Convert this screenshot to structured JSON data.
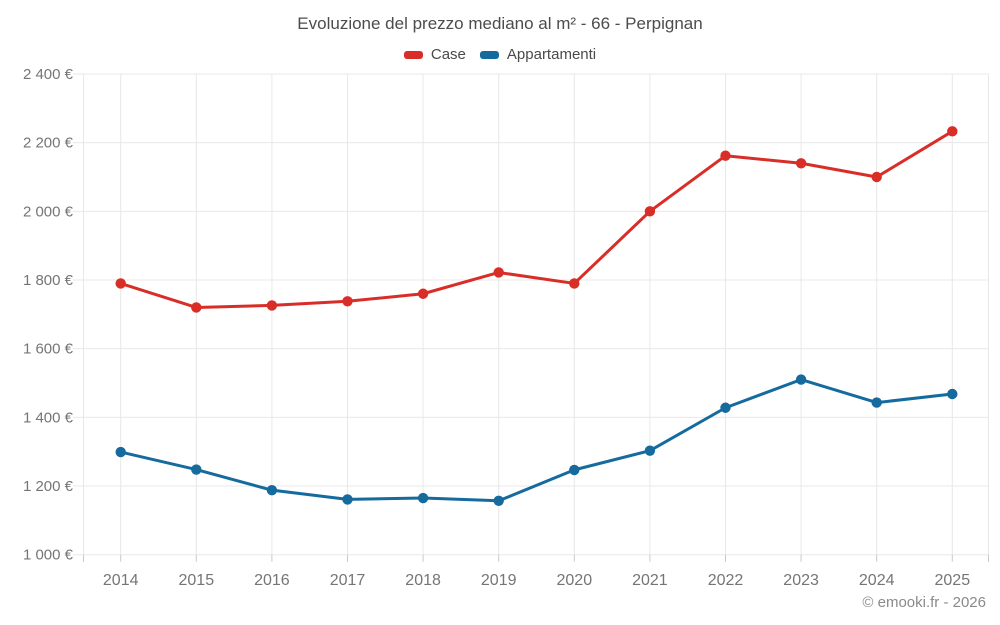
{
  "header": {
    "title": "Evoluzione del prezzo mediano al m² - 66 - Perpignan"
  },
  "legend": [
    {
      "label": "Case",
      "color": "#d92e27"
    },
    {
      "label": "Appartamenti",
      "color": "#156a9e"
    }
  ],
  "footer": {
    "credit": "© emooki.fr - 2026"
  },
  "chart_data": {
    "type": "line",
    "title": "Evoluzione del prezzo mediano al m² - 66 - Perpignan",
    "xlabel": "",
    "ylabel": "",
    "y_unit": "€",
    "grid": true,
    "legend_position": "top",
    "ylim": [
      1000,
      2400
    ],
    "categories": [
      "2014",
      "2015",
      "2016",
      "2017",
      "2018",
      "2019",
      "2020",
      "2021",
      "2022",
      "2023",
      "2024",
      "2025"
    ],
    "series": [
      {
        "name": "Case",
        "color": "#d92e27",
        "values": [
          1790,
          1720,
          1726,
          1738,
          1760,
          1822,
          1790,
          2000,
          2162,
          2140,
          2100,
          2233
        ]
      },
      {
        "name": "Appartamenti",
        "color": "#156a9e",
        "values": [
          1299,
          1248,
          1188,
          1161,
          1165,
          1157,
          1247,
          1303,
          1428,
          1510,
          1443,
          1468
        ]
      }
    ],
    "y_ticks": [
      {
        "value": 2400,
        "label": "2 400 €"
      },
      {
        "value": 2200,
        "label": "2 200 €"
      },
      {
        "value": 2000,
        "label": "2 000 €"
      },
      {
        "value": 1800,
        "label": "1 800 €"
      },
      {
        "value": 1600,
        "label": "1 600 €"
      },
      {
        "value": 1400,
        "label": "1 400 €"
      },
      {
        "value": 1200,
        "label": "1 200 €"
      },
      {
        "value": 1000,
        "label": "1 000 €"
      }
    ],
    "colors": {
      "gridline": "#e8e8e8",
      "tick": "#c9c9c9",
      "axis_label": "#757575"
    }
  }
}
